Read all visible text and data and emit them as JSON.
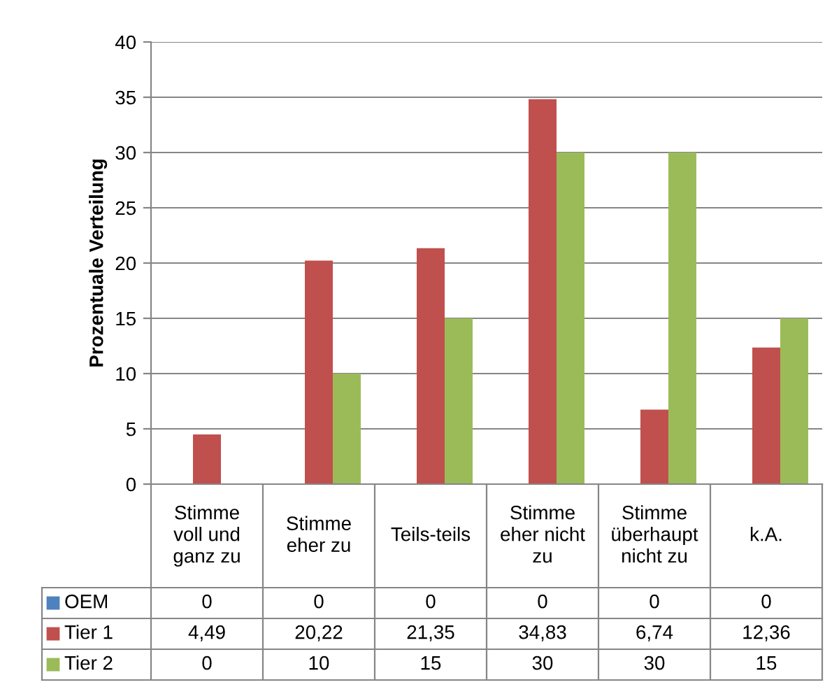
{
  "chart_data": {
    "type": "bar",
    "ylabel": "Prozentuale Verteilung",
    "categories": [
      "Stimme\nvoll und\nganz zu",
      "Stimme\neher zu",
      "Teils-teils",
      "Stimme\neher nicht\nzu",
      "Stimme\nüberhaupt\nnicht zu",
      "k.A."
    ],
    "series": [
      {
        "name": "OEM",
        "color": "#4f81bd",
        "values": [
          0,
          0,
          0,
          0,
          0,
          0
        ],
        "value_labels": [
          "0",
          "0",
          "0",
          "0",
          "0",
          "0"
        ]
      },
      {
        "name": "Tier 1",
        "color": "#c0504d",
        "values": [
          4.49,
          20.22,
          21.35,
          34.83,
          6.74,
          12.36
        ],
        "value_labels": [
          "4,49",
          "20,22",
          "21,35",
          "34,83",
          "6,74",
          "12,36"
        ]
      },
      {
        "name": "Tier 2",
        "color": "#9bbb59",
        "values": [
          0,
          10,
          15,
          30,
          30,
          15
        ],
        "value_labels": [
          "0",
          "10",
          "15",
          "30",
          "30",
          "15"
        ]
      }
    ],
    "ylim": [
      0,
      40
    ],
    "yticks": [
      0,
      5,
      10,
      15,
      20,
      25,
      30,
      35,
      40
    ],
    "grid": "y",
    "legend": "bottom"
  }
}
